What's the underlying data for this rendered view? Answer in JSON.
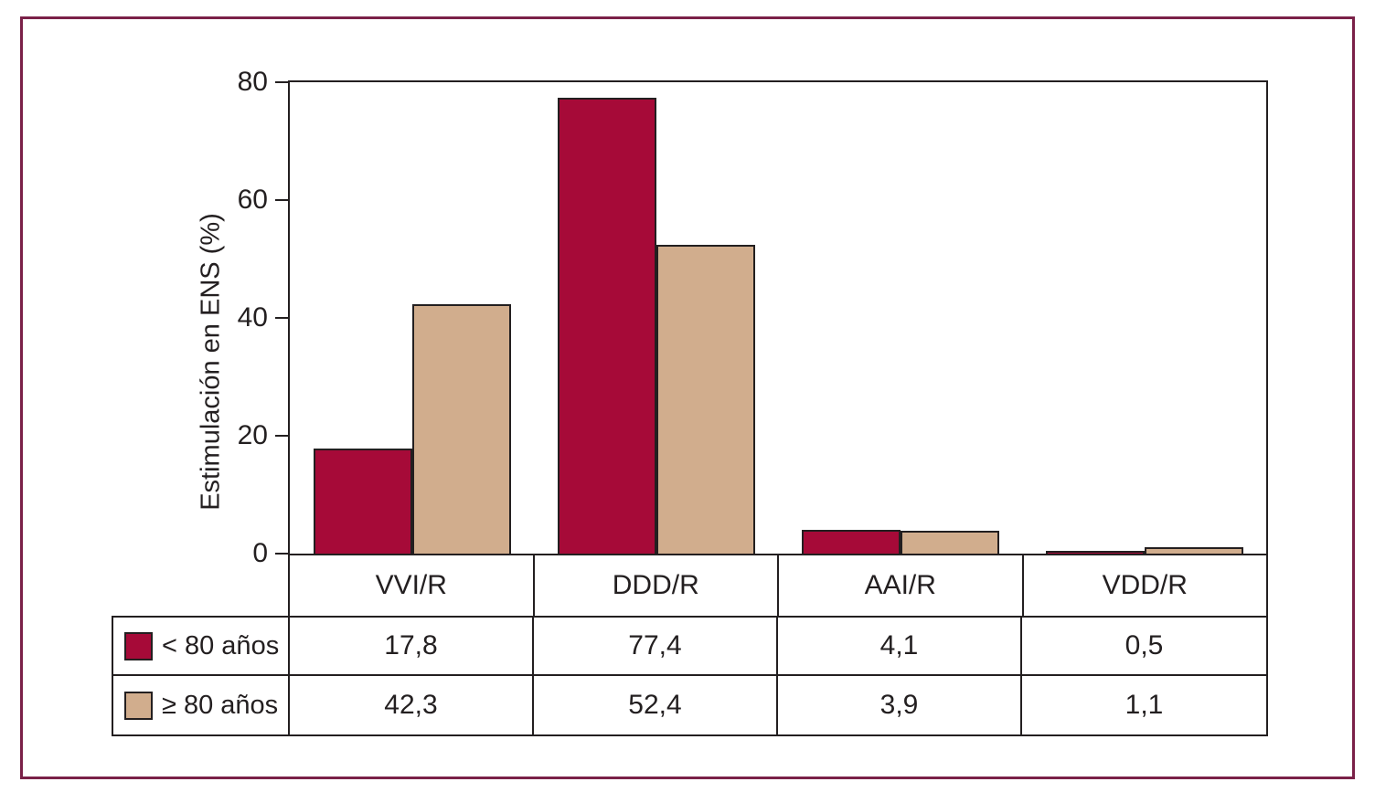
{
  "figure": {
    "frame_color": "#7a2148",
    "axis_color": "#231f20",
    "background": "#ffffff"
  },
  "chart_data": {
    "type": "bar",
    "title": "",
    "xlabel": "",
    "ylabel": "Estimulación en ENS (%)",
    "ylim": [
      0,
      80
    ],
    "yticks": [
      "0",
      "20",
      "40",
      "60",
      "80"
    ],
    "grid": false,
    "legend_position": "table-left",
    "categories": [
      "VVI/R",
      "DDD/R",
      "AAI/R",
      "VDD/R"
    ],
    "series": [
      {
        "name": "< 80 años",
        "color": "#a60a38",
        "values": [
          17.8,
          77.4,
          4.1,
          0.5
        ],
        "display_values": [
          "17,8",
          "77,4",
          "4,1",
          "0,5"
        ]
      },
      {
        "name": "≥ 80 años",
        "color": "#d1ad8d",
        "values": [
          42.3,
          52.4,
          3.9,
          1.1
        ],
        "display_values": [
          "42,3",
          "52,4",
          "3,9",
          "1,1"
        ]
      }
    ]
  }
}
